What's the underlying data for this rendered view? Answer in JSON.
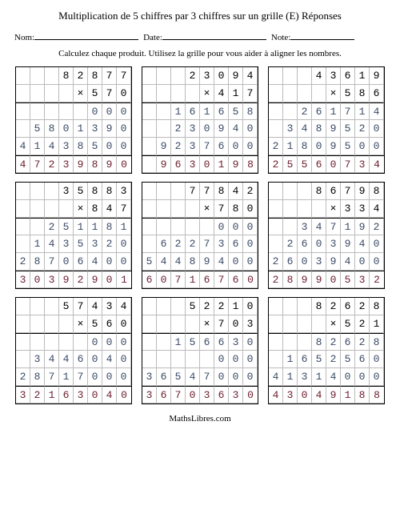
{
  "title": "Multiplication de 5 chiffres par 3 chiffres sur un grille (E) Réponses",
  "labels": {
    "name": "Nom:",
    "date": "Date:",
    "note": "Note:"
  },
  "instruction": "Calculez chaque produit. Utilisez la grille pour vous aider à aligner les nombres.",
  "footer": "MathsLibres.com",
  "cols": 8,
  "mult_sign": "×",
  "colors": {
    "text": "#000000",
    "partial": "#3a4a66",
    "result": "#6b1d2e",
    "grid_line": "#bbbbbb",
    "border": "#000000",
    "background": "#ffffff"
  },
  "problems": [
    {
      "top": [
        " ",
        " ",
        " ",
        "8",
        "2",
        "8",
        "7",
        "7"
      ],
      "mult": [
        " ",
        " ",
        " ",
        " ",
        "×",
        "5",
        "7",
        "0"
      ],
      "partials": [
        [
          " ",
          " ",
          " ",
          " ",
          " ",
          "0",
          "0",
          "0"
        ],
        [
          " ",
          "5",
          "8",
          "0",
          "1",
          "3",
          "9",
          "0"
        ],
        [
          "4",
          "1",
          "4",
          "3",
          "8",
          "5",
          "0",
          "0"
        ]
      ],
      "result": [
        "4",
        "7",
        "2",
        "3",
        "9",
        "8",
        "9",
        "0"
      ]
    },
    {
      "top": [
        " ",
        " ",
        " ",
        "2",
        "3",
        "0",
        "9",
        "4"
      ],
      "mult": [
        " ",
        " ",
        " ",
        " ",
        "×",
        "4",
        "1",
        "7"
      ],
      "partials": [
        [
          " ",
          "1",
          "6",
          "1",
          "6",
          "5",
          "8",
          " "
        ],
        [
          " ",
          " ",
          "2",
          "3",
          "0",
          "9",
          "4",
          "0"
        ],
        [
          "9",
          "2",
          "3",
          "7",
          "6",
          "0",
          "0",
          " "
        ]
      ],
      "result": [
        "9",
        "6",
        "3",
        "0",
        "1",
        "9",
        "8",
        " "
      ],
      "_fix_partials": [
        [
          " ",
          " ",
          "1",
          "6",
          "1",
          "6",
          "5",
          "8"
        ],
        [
          " ",
          " ",
          "2",
          "3",
          "0",
          "9",
          "4",
          "0"
        ],
        [
          " ",
          "9",
          "2",
          "3",
          "7",
          "6",
          "0",
          "0"
        ]
      ],
      "_fix_result": [
        " ",
        "9",
        "6",
        "3",
        "0",
        "1",
        "9",
        "8"
      ]
    },
    {
      "top": [
        " ",
        " ",
        " ",
        "4",
        "3",
        "6",
        "1",
        "9"
      ],
      "mult": [
        " ",
        " ",
        " ",
        " ",
        "×",
        "5",
        "8",
        "6"
      ],
      "partials": [
        [
          " ",
          " ",
          "2",
          "6",
          "1",
          "7",
          "1",
          "4"
        ],
        [
          " ",
          "3",
          "4",
          "8",
          "9",
          "5",
          "2",
          "0"
        ],
        [
          "2",
          "1",
          "8",
          "0",
          "9",
          "5",
          "0",
          "0"
        ]
      ],
      "result": [
        "2",
        "5",
        "5",
        "6",
        "0",
        "7",
        "3",
        "4"
      ]
    },
    {
      "top": [
        " ",
        " ",
        " ",
        "3",
        "5",
        "8",
        "8",
        "3"
      ],
      "mult": [
        " ",
        " ",
        " ",
        " ",
        "×",
        "8",
        "4",
        "7"
      ],
      "partials": [
        [
          " ",
          " ",
          "2",
          "5",
          "1",
          "1",
          "8",
          "1"
        ],
        [
          " ",
          "1",
          "4",
          "3",
          "5",
          "3",
          "2",
          "0"
        ],
        [
          "2",
          "8",
          "7",
          "0",
          "6",
          "4",
          "0",
          "0"
        ]
      ],
      "result": [
        "3",
        "0",
        "3",
        "9",
        "2",
        "9",
        "0",
        "1"
      ]
    },
    {
      "top": [
        " ",
        " ",
        " ",
        "7",
        "7",
        "8",
        "4",
        "2"
      ],
      "mult": [
        " ",
        " ",
        " ",
        " ",
        "×",
        "7",
        "8",
        "0"
      ],
      "partials": [
        [
          " ",
          " ",
          " ",
          " ",
          " ",
          "0",
          "0",
          "0"
        ],
        [
          " ",
          "6",
          "2",
          "2",
          "7",
          "3",
          "6",
          "0"
        ],
        [
          "5",
          "4",
          "4",
          "8",
          "9",
          "4",
          "0",
          "0"
        ]
      ],
      "result": [
        "6",
        "0",
        "7",
        "1",
        "6",
        "7",
        "6",
        "0"
      ]
    },
    {
      "top": [
        " ",
        " ",
        " ",
        "8",
        "6",
        "7",
        "9",
        "8"
      ],
      "mult": [
        " ",
        " ",
        " ",
        " ",
        "×",
        "3",
        "3",
        "4"
      ],
      "partials": [
        [
          " ",
          " ",
          "3",
          "4",
          "7",
          "1",
          "9",
          "2"
        ],
        [
          " ",
          "2",
          "6",
          "0",
          "3",
          "9",
          "4",
          "0"
        ],
        [
          "2",
          "6",
          "0",
          "3",
          "9",
          "4",
          "0",
          "0"
        ]
      ],
      "result": [
        "2",
        "8",
        "9",
        "9",
        "0",
        "5",
        "3",
        "2"
      ]
    },
    {
      "top": [
        " ",
        " ",
        " ",
        "5",
        "7",
        "4",
        "3",
        "4"
      ],
      "mult": [
        " ",
        " ",
        " ",
        " ",
        "×",
        "5",
        "6",
        "0"
      ],
      "partials": [
        [
          " ",
          " ",
          " ",
          " ",
          " ",
          "0",
          "0",
          "0"
        ],
        [
          " ",
          "3",
          "4",
          "4",
          "6",
          "0",
          "4",
          "0"
        ],
        [
          "2",
          "8",
          "7",
          "1",
          "7",
          "0",
          "0",
          "0"
        ]
      ],
      "result": [
        "3",
        "2",
        "1",
        "6",
        "3",
        "0",
        "4",
        "0"
      ]
    },
    {
      "top": [
        " ",
        " ",
        " ",
        "5",
        "2",
        "2",
        "1",
        "0"
      ],
      "mult": [
        " ",
        " ",
        " ",
        " ",
        "×",
        "7",
        "0",
        "3"
      ],
      "partials": [
        [
          " ",
          " ",
          "1",
          "5",
          "6",
          "6",
          "3",
          "0"
        ],
        [
          " ",
          " ",
          " ",
          " ",
          " ",
          "0",
          "0",
          "0"
        ],
        [
          "3",
          "6",
          "5",
          "4",
          "7",
          "0",
          "0",
          "0"
        ]
      ],
      "result": [
        "3",
        "6",
        "7",
        "0",
        "3",
        "6",
        "3",
        "0"
      ]
    },
    {
      "top": [
        " ",
        " ",
        " ",
        "8",
        "2",
        "6",
        "2",
        "8"
      ],
      "mult": [
        " ",
        " ",
        " ",
        " ",
        "×",
        "5",
        "2",
        "1"
      ],
      "partials": [
        [
          " ",
          " ",
          " ",
          "8",
          "2",
          "6",
          "2",
          "8"
        ],
        [
          " ",
          "1",
          "6",
          "5",
          "2",
          "5",
          "6",
          "0"
        ],
        [
          "4",
          "1",
          "3",
          "1",
          "4",
          "0",
          "0",
          "0"
        ]
      ],
      "result": [
        "4",
        "3",
        "0",
        "4",
        "9",
        "1",
        "8",
        "8"
      ]
    }
  ]
}
